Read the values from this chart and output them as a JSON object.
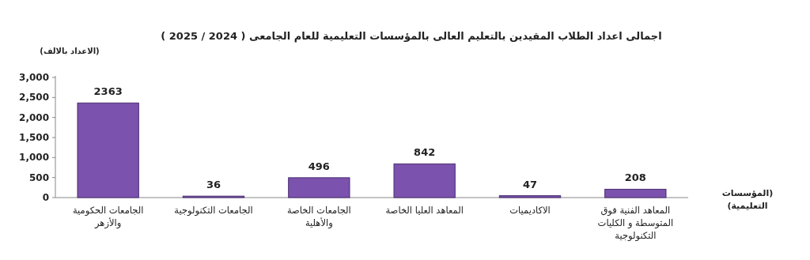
{
  "chart_data": {
    "type": "bar",
    "title": "اجمالى اعداد الطلاب المقيدين بالتعليم العالى بالمؤسسات التعليمية للعام الجامعى ( 2024 / 2025 )",
    "ylabel": "(الاعداد بالالف)",
    "xlabel": "(المؤسسات\nالتعليمية)",
    "categories": [
      "الجامعات الحكومية\nوالأزهر",
      "الجامعات التكنولوجية",
      "الجامعات الخاصة\nوالأهلية",
      "المعاهد العليا الخاصة",
      "الاكاديميات",
      "المعاهد الفنية فوق\nالمتوسطة و الكليات\nالتكنولوجية"
    ],
    "values": [
      2363,
      36,
      496,
      842,
      47,
      208
    ],
    "color": "#7b52ad",
    "ylim": [
      0,
      3000
    ],
    "yticks": [
      0,
      500,
      {
        "value": 1000,
        "label": "1,000"
      },
      {
        "value": 1500,
        "label": "1,500"
      },
      {
        "value": 2000,
        "label": "2,000"
      },
      {
        "value": 2500,
        "label": "2,500"
      },
      {
        "value": 3000,
        "label": "3,000"
      }
    ],
    "data_labels": true,
    "grid": false
  }
}
